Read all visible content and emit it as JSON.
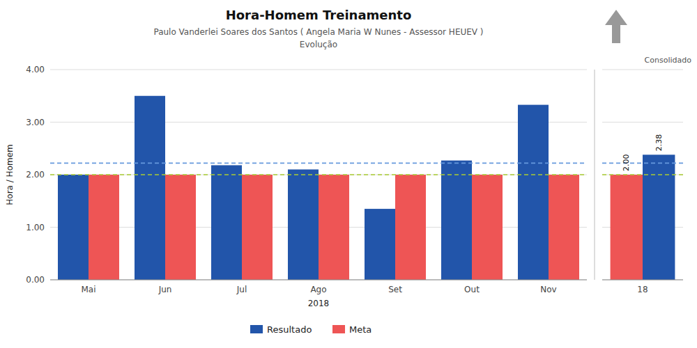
{
  "chart_data": [
    {
      "type": "bar",
      "title": "Hora-Homem Treinamento",
      "subtitle": [
        "Paulo Vanderlei Soares dos Santos ( Angela Maria W Nunes - Assessor HEUEV )",
        "Evolução"
      ],
      "x_label": "2018",
      "y_label": "Hora / Homem",
      "categories": [
        "Mai",
        "Jun",
        "Jul",
        "Ago",
        "Set",
        "Out",
        "Nov"
      ],
      "series": [
        {
          "name": "Resultado",
          "color": "#2255AA",
          "values": [
            2.0,
            3.5,
            2.18,
            2.1,
            1.35,
            2.27,
            3.33
          ]
        },
        {
          "name": "Meta",
          "color": "#EE5555",
          "values": [
            2.0,
            2.0,
            2.0,
            2.0,
            2.0,
            2.0,
            2.0
          ]
        }
      ],
      "reference_lines": [
        {
          "value": 2.22,
          "color": "#6699DD",
          "line_style": "dashed"
        },
        {
          "value": 2.0,
          "color": "#AACC33",
          "line_style": "dashed"
        }
      ],
      "ylim": [
        0,
        4.0
      ],
      "yticks": [
        {
          "value": 0,
          "label": "0.00"
        },
        {
          "value": 1,
          "label": "1.00"
        },
        {
          "value": 2,
          "label": "2.00"
        },
        {
          "value": 3,
          "label": "3.00"
        },
        {
          "value": 4,
          "label": "4.00"
        }
      ],
      "grid": true,
      "legend": "bottom"
    },
    {
      "type": "bar",
      "annotations": [
        "Consolidado"
      ],
      "categories": [
        "18"
      ],
      "series": [
        {
          "name": "Meta",
          "color": "#EE5555",
          "values": [
            2.0
          ],
          "value_labels": [
            "2.00"
          ]
        },
        {
          "name": "Resultado",
          "color": "#2255AA",
          "values": [
            2.38
          ]
        }
      ],
      "reference_lines": [
        {
          "value": 2.22,
          "color": "#6699DD",
          "line_style": "dashed"
        },
        {
          "value": 2.0,
          "color": "#AACC33",
          "line_style": "dashed"
        }
      ],
      "ylim": [
        0,
        4.0
      ],
      "yticks": [
        0,
        1,
        2,
        3,
        4
      ],
      "grid": true,
      "tick_labels": "x",
      "data_labels": true
    }
  ]
}
